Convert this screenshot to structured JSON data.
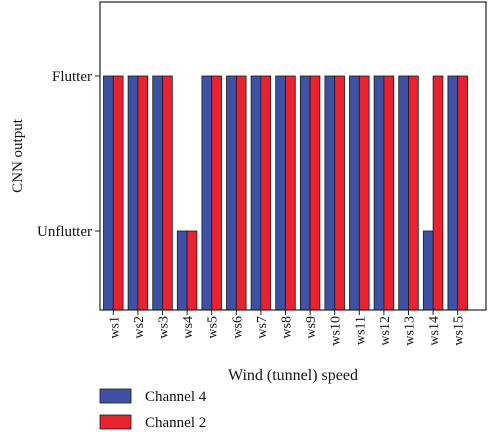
{
  "chart_data": {
    "type": "bar",
    "xlabel": "Wind (tunnel) speed",
    "ylabel": "CNN output",
    "y_tick_labels": [
      "Unflutter",
      "Flutter"
    ],
    "categories": [
      "ws1",
      "ws2",
      "ws3",
      "ws4",
      "ws5",
      "ws6",
      "ws7",
      "ws8",
      "ws9",
      "ws10",
      "ws11",
      "ws12",
      "ws13",
      "ws14",
      "ws15"
    ],
    "series": [
      {
        "name": "Channel 4",
        "color": "#3f51a5",
        "values": [
          "Flutter",
          "Flutter",
          "Flutter",
          "Unflutter",
          "Flutter",
          "Flutter",
          "Flutter",
          "Flutter",
          "Flutter",
          "Flutter",
          "Flutter",
          "Flutter",
          "Flutter",
          "Unflutter",
          "Flutter"
        ]
      },
      {
        "name": "Channel 2",
        "color": "#e8222e",
        "values": [
          "Flutter",
          "Flutter",
          "Flutter",
          "Unflutter",
          "Flutter",
          "Flutter",
          "Flutter",
          "Flutter",
          "Flutter",
          "Flutter",
          "Flutter",
          "Flutter",
          "Flutter",
          "Flutter",
          "Flutter"
        ]
      }
    ],
    "legend_position": "bottom-left",
    "grid": false
  }
}
